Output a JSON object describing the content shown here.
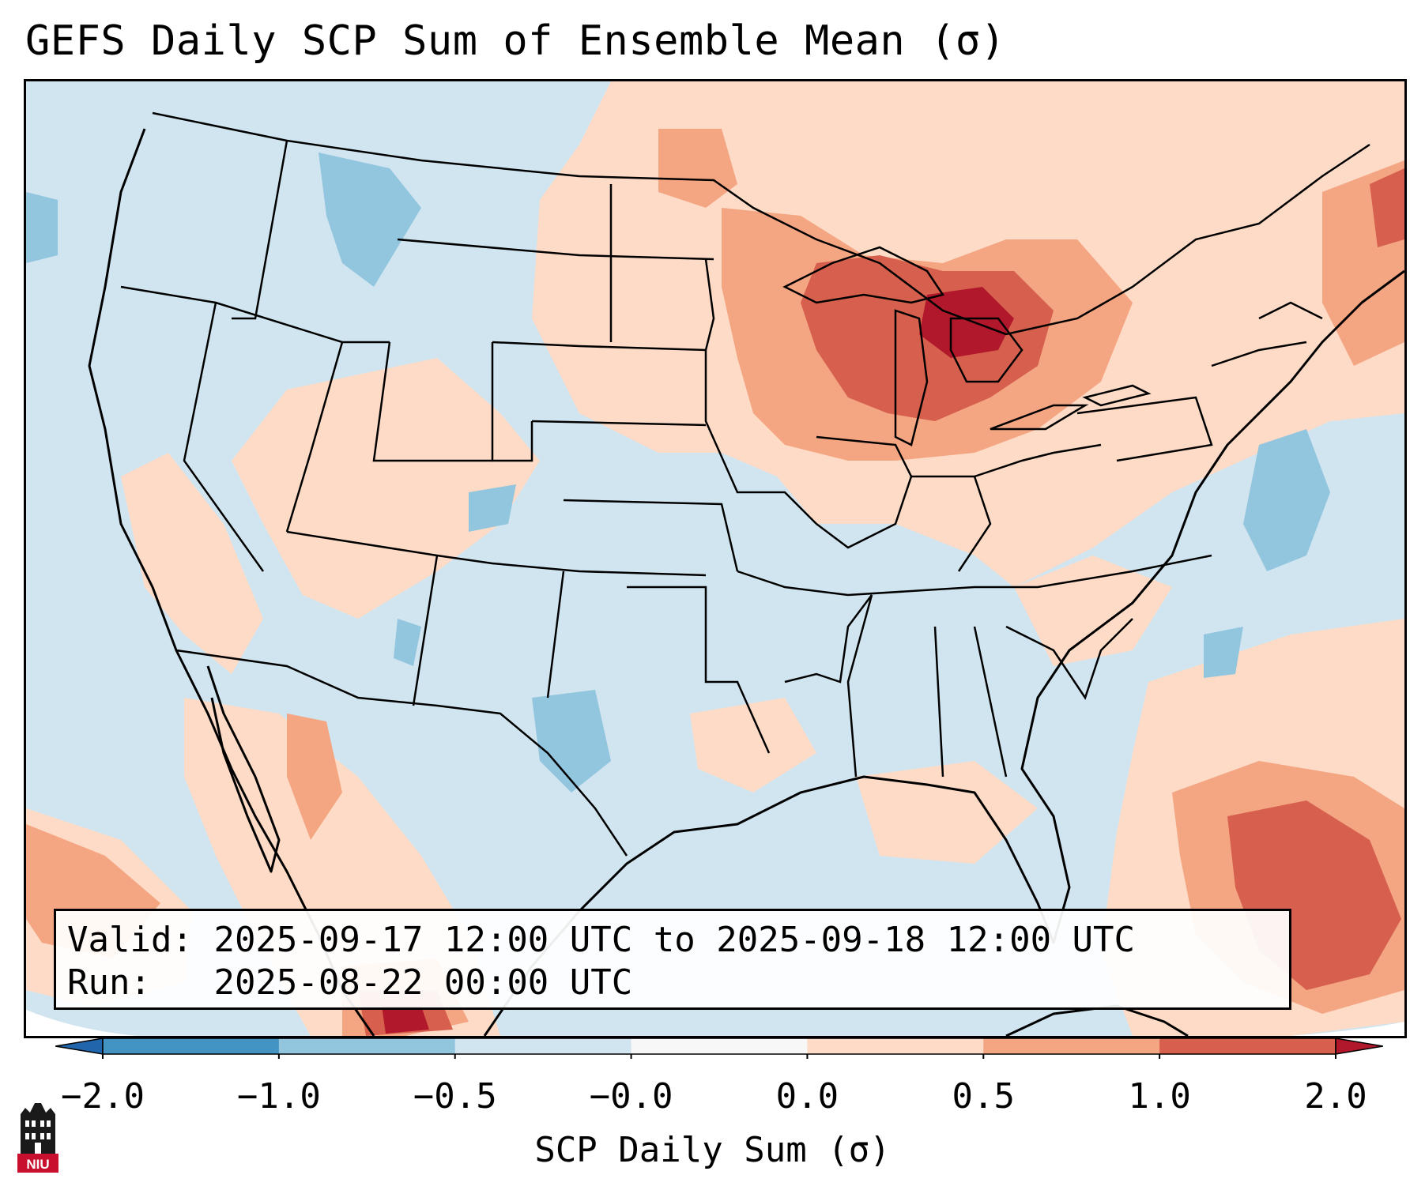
{
  "title": "GEFS Daily SCP Sum of Ensemble Mean (σ)",
  "info": {
    "valid_label": "Valid:",
    "valid_value": "2025-09-17 12:00 UTC to 2025-09-18 12:00 UTC",
    "run_label": "Run:",
    "run_value": "2025-08-22 00:00 UTC"
  },
  "colorbar": {
    "title": "SCP Daily Sum (σ)",
    "tick_labels": [
      "−2.0",
      "−1.0",
      "−0.5",
      "−0.0",
      "0.0",
      "0.5",
      "1.0",
      "2.0"
    ],
    "bins": [
      {
        "range": "< -2.0",
        "color": "#2166ac"
      },
      {
        "range": "-2.0 to -1.0",
        "color": "#4393c3"
      },
      {
        "range": "-1.0 to -0.5",
        "color": "#92c5de"
      },
      {
        "range": "-0.5 to -0.0",
        "color": "#d1e5f0"
      },
      {
        "range": "-0.0 to 0.0",
        "color": "#f7f7f7"
      },
      {
        "range": "0.0 to 0.5",
        "color": "#fddbc7"
      },
      {
        "range": "0.5 to 1.0",
        "color": "#f4a582"
      },
      {
        "range": "1.0 to 2.0",
        "color": "#d6604d"
      },
      {
        "range": "> 2.0",
        "color": "#b2182b"
      }
    ]
  },
  "regions": [
    {
      "name": "great-lakes-maximum",
      "category": "1.0 to 2.0+"
    },
    {
      "name": "upper-midwest",
      "category": "0.5 to 1.0"
    },
    {
      "name": "northern-plains",
      "category": "0.0 to 0.5"
    },
    {
      "name": "atlantic-bahamas",
      "category": "1.0 to 2.0"
    },
    {
      "name": "gulf-of-california",
      "category": "0.5 to 1.0"
    },
    {
      "name": "mid-atlantic-coast",
      "category": "-1.0 to -0.5"
    },
    {
      "name": "west-texas",
      "category": "-1.0 to -0.5"
    },
    {
      "name": "montana-idaho",
      "category": "-1.0 to -0.5"
    }
  ],
  "logo": {
    "text": "NIU"
  }
}
